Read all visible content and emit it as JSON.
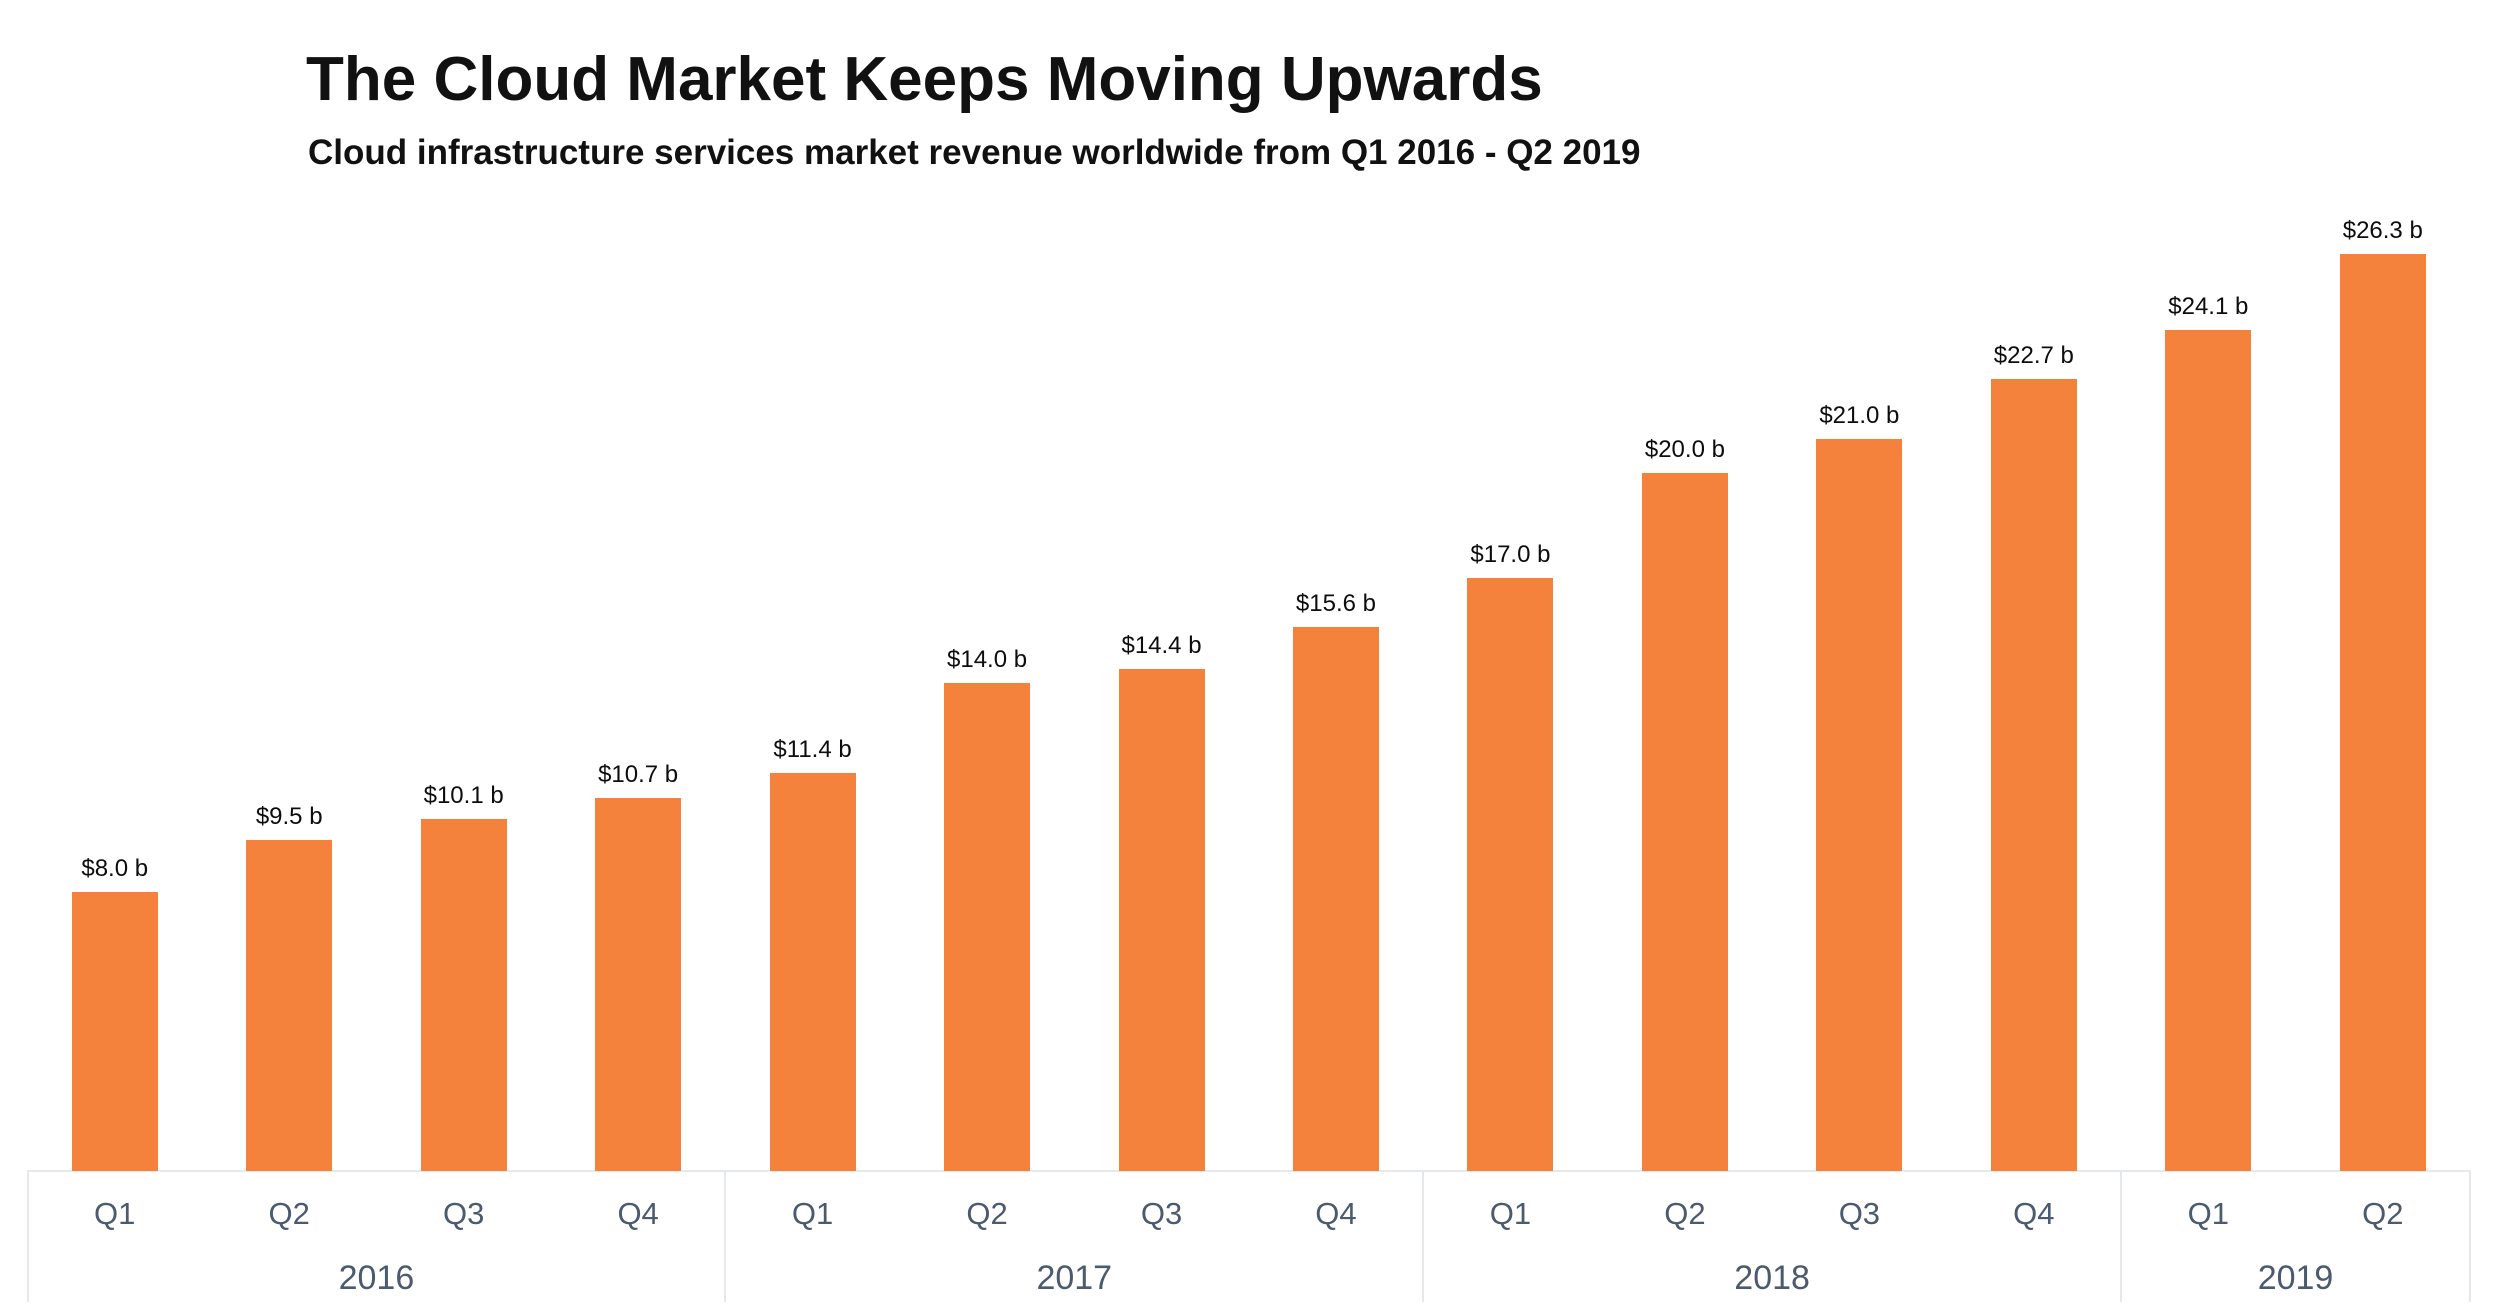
{
  "chart_data": {
    "type": "bar",
    "title": "The Cloud Market Keeps Moving Upwards",
    "subtitle": "Cloud infrastructure services market revenue worldwide from Q1 2016 - Q2 2019",
    "categories": [
      "Q1 2016",
      "Q2 2016",
      "Q3 2016",
      "Q4 2016",
      "Q1 2017",
      "Q2 2017",
      "Q3 2017",
      "Q4 2017",
      "Q1 2018",
      "Q2 2018",
      "Q3 2018",
      "Q4 2018",
      "Q1 2019",
      "Q2 2019"
    ],
    "quarter_labels": [
      "Q1",
      "Q2",
      "Q3",
      "Q4",
      "Q1",
      "Q2",
      "Q3",
      "Q4",
      "Q1",
      "Q2",
      "Q3",
      "Q4",
      "Q1",
      "Q2"
    ],
    "year_groups": [
      {
        "label": "2016",
        "count": 4
      },
      {
        "label": "2017",
        "count": 4
      },
      {
        "label": "2018",
        "count": 4
      },
      {
        "label": "2019",
        "count": 2
      }
    ],
    "series": [
      {
        "name": "Cloud infrastructure services revenue (billion USD)",
        "values": [
          8.0,
          9.5,
          10.1,
          10.7,
          11.4,
          14.0,
          14.4,
          15.6,
          17.0,
          20.0,
          21.0,
          22.7,
          24.1,
          26.3
        ]
      }
    ],
    "data_labels": [
      "$8.0 b",
      "$9.5 b",
      "$10.1 b",
      "$10.7 b",
      "$11.4 b",
      "$14.0 b",
      "$14.4 b",
      "$15.6 b",
      "$17.0 b",
      "$20.0 b",
      "$21.0 b",
      "$22.7 b",
      "$24.1 b",
      "$26.3 b"
    ],
    "xlabel": "",
    "ylabel": "",
    "ylim": [
      0,
      28
    ],
    "grid": false,
    "legend": false,
    "colors": {
      "bar": "#f4823c",
      "data_label": "#0d0d0d",
      "axis_text": "#4b5a6e",
      "line": "#e5e9ec",
      "title_text": "#111111"
    }
  }
}
